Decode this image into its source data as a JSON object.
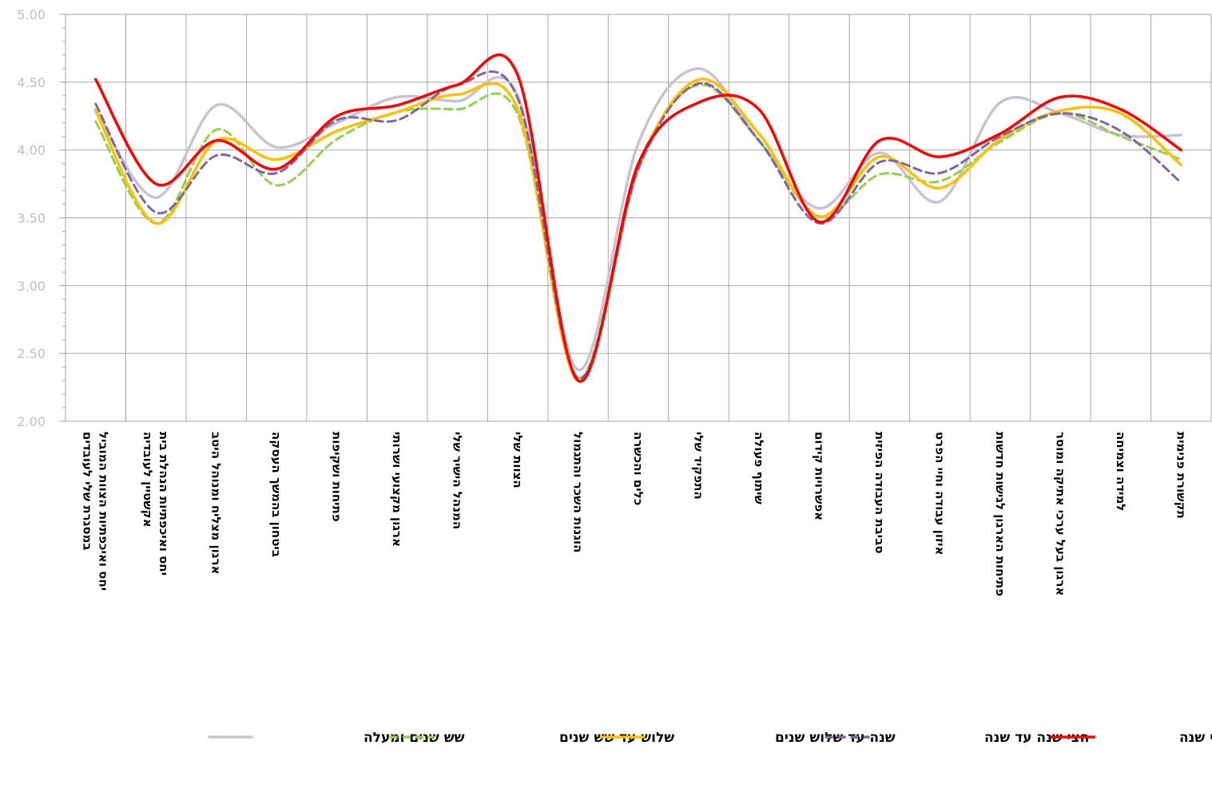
{
  "chart_data": {
    "type": "line",
    "smooth": true,
    "categories": [
      "יחס ואיכפתיות הצוות המוביל במסגרת שלי לעובדים",
      "יחס ואיכפתיות הנהלת בית אקשטיין לעובדיה",
      "ארגון מצליח ומנוהל היטב",
      "ביטחון בהמשך העסקה",
      "פתיחות ושקיפות",
      "ארגון מקצועי ושרותי",
      "המנהל הישיר שלי",
      "הצוות שלי",
      "הוגנות השכר והתגמול",
      "כלים והכשרה",
      "התפקיד שלי",
      "שיתוף פעולה",
      "אפשרויות קידום",
      "סביבת העבודה הפיזית",
      "איזון עבודה וחיי הפרט",
      "פתיחות הארגון לגישות חדשות",
      "ארגון בעל ערכי אתיקה ומוסר",
      "למידה וצמיחה",
      "תקשורת פנימית"
    ],
    "ylim": [
      2.0,
      5.0
    ],
    "yticks": [
      "2.00",
      "2.50",
      "3.00",
      "3.50",
      "4.00",
      "4.50",
      "5.00"
    ],
    "grid": true,
    "legend_position": "bottom",
    "series": [
      {
        "name": "עד חצי שנה",
        "color": "#ff0000",
        "dash": "solid",
        "values": [
          4.52,
          3.75,
          4.07,
          3.86,
          4.25,
          4.33,
          4.48,
          4.55,
          2.3,
          3.9,
          4.35,
          4.3,
          3.47,
          4.07,
          3.95,
          4.12,
          4.39,
          4.3,
          4.0
        ]
      },
      {
        "name": "חצי שנה עד שנה",
        "color": "#7f65a6",
        "dash": "dashed",
        "values": [
          4.34,
          3.54,
          3.96,
          3.83,
          4.22,
          4.22,
          4.48,
          4.38,
          2.32,
          3.86,
          4.49,
          4.07,
          3.46,
          3.91,
          3.83,
          4.1,
          4.27,
          4.14,
          3.76
        ]
      },
      {
        "name": "שנה עד שלוש שנים",
        "color": "#ffc000",
        "dash": "solid",
        "values": [
          4.29,
          3.46,
          4.07,
          3.93,
          4.14,
          4.28,
          4.41,
          4.3,
          2.3,
          3.87,
          4.52,
          4.12,
          3.51,
          3.95,
          3.72,
          4.08,
          4.29,
          4.27,
          3.89
        ]
      },
      {
        "name": "שלוש עד שש שנים",
        "color": "#92d050",
        "dash": "dashed",
        "values": [
          4.21,
          3.46,
          4.15,
          3.74,
          4.08,
          4.28,
          4.3,
          4.26,
          2.32,
          3.89,
          4.48,
          4.07,
          3.51,
          3.82,
          3.77,
          4.06,
          4.27,
          4.1,
          3.93
        ]
      },
      {
        "name": "שש שנים ומעלה",
        "color": "#c8c2d4",
        "dash": "solid",
        "values": [
          4.3,
          3.65,
          4.33,
          4.02,
          4.2,
          4.39,
          4.36,
          4.4,
          2.38,
          4.05,
          4.6,
          4.07,
          3.57,
          3.98,
          3.62,
          4.35,
          4.27,
          4.11,
          4.11
        ]
      }
    ]
  }
}
